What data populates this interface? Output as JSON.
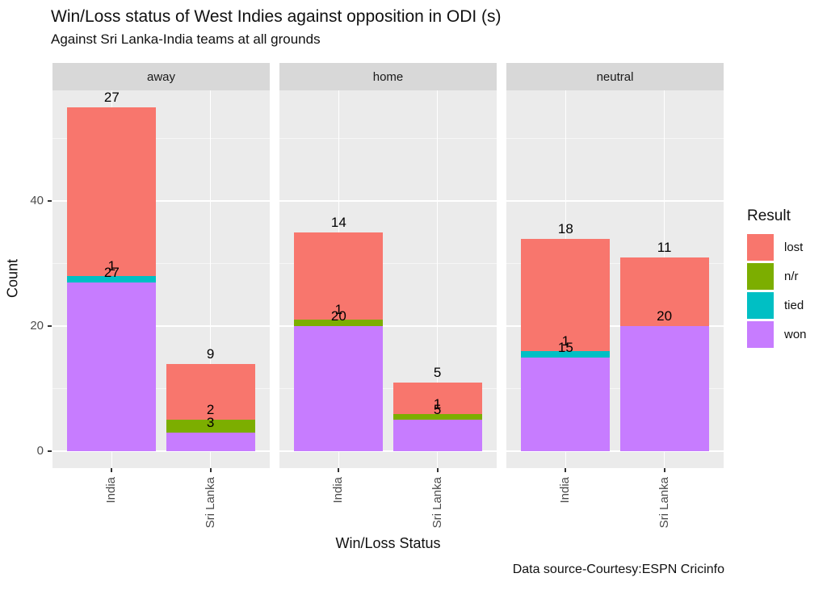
{
  "chart_data": {
    "type": "bar",
    "stacked": true,
    "title": "Win/Loss status of West Indies against opposition in ODI (s)",
    "subtitle": "Against Sri Lanka-India  teams at all grounds",
    "caption": "Data source-Courtesy:ESPN Cricinfo",
    "xlabel": "Win/Loss Status",
    "ylabel": "Count",
    "legend": {
      "title": "Result",
      "position": "right",
      "entries": [
        {
          "label": "lost",
          "color": "#F8766D"
        },
        {
          "label": "n/r",
          "color": "#7CAE00"
        },
        {
          "label": "tied",
          "color": "#00BFC4"
        },
        {
          "label": "won",
          "color": "#C77CFF"
        }
      ]
    },
    "y_axis": {
      "major_ticks": [
        0,
        20,
        40
      ],
      "minor_ticks": [
        10,
        30,
        50
      ],
      "ylim": [
        -2.75,
        57.75
      ]
    },
    "x_categories": [
      "India",
      "Sri Lanka"
    ],
    "stack_order_bottom_to_top": [
      "won",
      "tied",
      "n/r",
      "lost"
    ],
    "grid": true,
    "facets": [
      {
        "label": "away",
        "bars": [
          {
            "category": "India",
            "segments": {
              "won": 27,
              "tied": 1,
              "lost": 27
            },
            "total": 55
          },
          {
            "category": "Sri Lanka",
            "segments": {
              "won": 3,
              "n/r": 2,
              "lost": 9
            },
            "total": 14
          }
        ]
      },
      {
        "label": "home",
        "bars": [
          {
            "category": "India",
            "segments": {
              "won": 20,
              "n/r": 1,
              "lost": 14
            },
            "total": 35
          },
          {
            "category": "Sri Lanka",
            "segments": {
              "won": 5,
              "n/r": 1,
              "lost": 5
            },
            "total": 11
          }
        ]
      },
      {
        "label": "neutral",
        "bars": [
          {
            "category": "India",
            "segments": {
              "won": 15,
              "tied": 1,
              "lost": 18
            },
            "total": 34
          },
          {
            "category": "Sri Lanka",
            "segments": {
              "won": 20,
              "lost": 11
            },
            "total": 31
          }
        ]
      }
    ],
    "colors": {
      "panel_bg": "#EBEBEB",
      "strip_bg": "#D8D8D8",
      "grid": "#FFFFFF",
      "axis_text": "#4D4D4D",
      "label_text": "#000000"
    }
  }
}
